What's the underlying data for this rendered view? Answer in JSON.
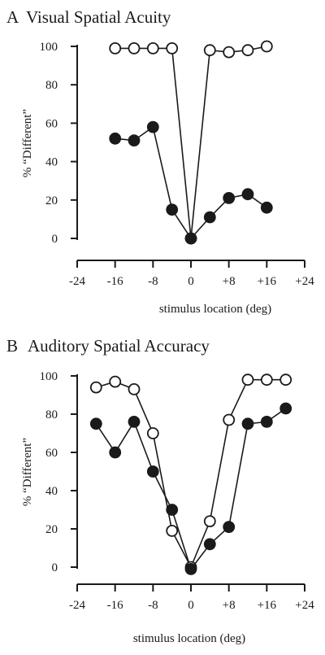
{
  "chart_data": [
    {
      "type": "line",
      "panel_letter": "A",
      "title": "Visual Spatial Acuity",
      "xlabel": "stimulus location (deg)",
      "ylabel": "% “Different”",
      "xlim": [
        -24,
        24
      ],
      "ylim": [
        0,
        100
      ],
      "x_ticks": [
        -24,
        -16,
        -8,
        0,
        8,
        16,
        24
      ],
      "x_tick_labels": [
        "-24",
        "-16",
        "-8",
        "0",
        "+8",
        "+16",
        "+24"
      ],
      "y_ticks": [
        0,
        20,
        40,
        60,
        80,
        100
      ],
      "y_tick_labels": [
        "0",
        "20",
        "40",
        "60",
        "80",
        "100"
      ],
      "series": [
        {
          "marker": "open",
          "color": "#ffffff",
          "segments": [
            {
              "x": [
                -16,
                -12,
                -8,
                -4,
                0
              ],
              "y": [
                99,
                99,
                99,
                99,
                0
              ]
            },
            {
              "x": [
                0,
                4,
                8,
                12,
                16
              ],
              "y": [
                0,
                98,
                97,
                98,
                100
              ]
            }
          ]
        },
        {
          "marker": "filled",
          "color": "#1a1a1a",
          "segments": [
            {
              "x": [
                -16,
                -12,
                -8,
                -4,
                0,
                4,
                8,
                12,
                16
              ],
              "y": [
                52,
                51,
                58,
                15,
                0,
                11,
                21,
                23,
                16
              ]
            }
          ]
        }
      ]
    },
    {
      "type": "line",
      "panel_letter": "B",
      "title": "Auditory Spatial Accuracy",
      "xlabel": "stimulus location (deg)",
      "ylabel": "% “Different”",
      "xlim": [
        -24,
        24
      ],
      "ylim": [
        0,
        100
      ],
      "x_ticks": [
        -24,
        -16,
        -8,
        0,
        8,
        16,
        24
      ],
      "x_tick_labels": [
        "-24",
        "-16",
        "-8",
        "0",
        "+8",
        "+16",
        "+24"
      ],
      "y_ticks": [
        0,
        20,
        40,
        60,
        80,
        100
      ],
      "y_tick_labels": [
        "0",
        "20",
        "40",
        "60",
        "80",
        "100"
      ],
      "series": [
        {
          "marker": "open",
          "color": "#ffffff",
          "segments": [
            {
              "x": [
                -20,
                -16,
                -12,
                -8,
                -4,
                0,
                4,
                8,
                12,
                16,
                20
              ],
              "y": [
                94,
                97,
                93,
                70,
                19,
                0,
                24,
                77,
                98,
                98,
                98
              ]
            }
          ]
        },
        {
          "marker": "filled",
          "color": "#1a1a1a",
          "segments": [
            {
              "x": [
                -20,
                -16,
                -12,
                -8,
                -4,
                0,
                4,
                8,
                12,
                16,
                20
              ],
              "y": [
                75,
                60,
                76,
                50,
                30,
                -1,
                12,
                21,
                75,
                76,
                83
              ]
            }
          ]
        }
      ]
    }
  ]
}
